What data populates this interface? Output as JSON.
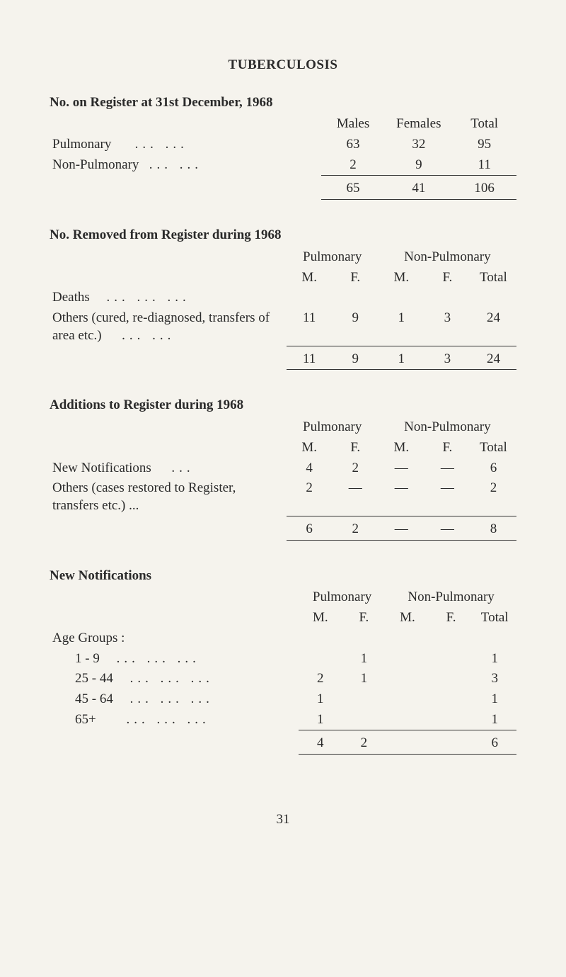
{
  "title": "TUBERCULOSIS",
  "section1": {
    "heading": "No. on Register at 31st December, 1968",
    "columns": [
      "Males",
      "Females",
      "Total"
    ],
    "rows": [
      {
        "label": "Pulmonary",
        "dots": "...      ...",
        "vals": [
          "63",
          "32",
          "95"
        ]
      },
      {
        "label": "Non-Pulmonary",
        "dots": "...      ...",
        "vals": [
          "2",
          "9",
          "11"
        ]
      }
    ],
    "totals": [
      "65",
      "41",
      "106"
    ]
  },
  "section2": {
    "heading": "No. Removed from Register during 1968",
    "group_headers": [
      "Pulmonary",
      "Non-Pulmonary"
    ],
    "sub_headers": [
      "M.",
      "F.",
      "M.",
      "F.",
      "Total"
    ],
    "rows": [
      {
        "label": "Deaths",
        "dots": "...      ...      ...",
        "vals": [
          "",
          "",
          "",
          "",
          ""
        ]
      },
      {
        "label": "Others (cured, re-diagnosed, transfers of area etc.)",
        "dots": "...   ...",
        "vals": [
          "11",
          "9",
          "1",
          "3",
          "24"
        ]
      }
    ],
    "totals": [
      "11",
      "9",
      "1",
      "3",
      "24"
    ]
  },
  "section3": {
    "heading": "Additions to Register during 1968",
    "group_headers": [
      "Pulmonary",
      "Non-Pulmonary"
    ],
    "sub_headers": [
      "M.",
      "F.",
      "M.",
      "F.",
      "Total"
    ],
    "rows": [
      {
        "label": "New Notifications",
        "dots": "...",
        "vals": [
          "4",
          "2",
          "—",
          "—",
          "6"
        ]
      },
      {
        "label": "Others (cases restored to Register, transfers etc.) ...",
        "dots": "",
        "vals": [
          "2",
          "—",
          "—",
          "—",
          "2"
        ]
      }
    ],
    "totals": [
      "6",
      "2",
      "—",
      "—",
      "8"
    ]
  },
  "section4": {
    "heading": "New Notifications",
    "group_headers": [
      "Pulmonary",
      "Non-Pulmonary"
    ],
    "sub_headers": [
      "M.",
      "F.",
      "M.",
      "F.",
      "Total"
    ],
    "subheading": "Age Groups :",
    "rows": [
      {
        "label": "1 - 9",
        "dots": "...      ...      ...",
        "vals": [
          "",
          "1",
          "",
          "",
          "1"
        ]
      },
      {
        "label": "25 - 44",
        "dots": "...      ...      ...",
        "vals": [
          "2",
          "1",
          "",
          "",
          "3"
        ]
      },
      {
        "label": "45 - 64",
        "dots": "...      ...      ...",
        "vals": [
          "1",
          "",
          "",
          "",
          "1"
        ]
      },
      {
        "label": "65+",
        "dots": "...      ...      ...",
        "vals": [
          "1",
          "",
          "",
          "",
          "1"
        ]
      }
    ],
    "totals": [
      "4",
      "2",
      "",
      "",
      "6"
    ]
  },
  "page_number": "31"
}
